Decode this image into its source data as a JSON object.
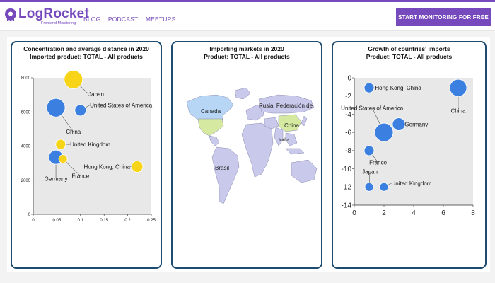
{
  "header": {
    "logo_text": "LogRocket",
    "logo_sub": "Frontend Monitoring",
    "nav": [
      "BLOG",
      "PODCAST",
      "MEETUPS"
    ],
    "cta_label": "START MONITORING FOR FREE",
    "accent": "#764abc"
  },
  "charts": {
    "concentration": {
      "title1": "Concentration and average distance in 2020",
      "title2": "Imported product: TOTAL - All products"
    },
    "map": {
      "title1": "Importing markets in 2020",
      "title2": "Product: TOTAL - All products",
      "labels": [
        "Canada",
        "Rusia, Federación de",
        "China",
        "India",
        "Brasil"
      ]
    },
    "growth": {
      "title1": "Growth of countries' imports",
      "title2": "Product: TOTAL - All products"
    }
  },
  "chart_data": [
    {
      "type": "scatter",
      "title": "Concentration and average distance in 2020",
      "subtitle": "Imported product: TOTAL - All products",
      "xlim": [
        0,
        0.25
      ],
      "ylim": [
        0,
        8000
      ],
      "x_ticks": [
        "0",
        "0.05",
        "0.1",
        "0.15",
        "0.2",
        "0.25"
      ],
      "y_ticks": [
        "0",
        "2000",
        "4000",
        "6000",
        "8000"
      ],
      "points": [
        {
          "name": "Japan",
          "x": 0.085,
          "y": 7900,
          "r": 13,
          "color": "#f7d417",
          "lx": 0.117,
          "ly": 7050,
          "anchor": "start"
        },
        {
          "name": "United States of America",
          "x": 0.1,
          "y": 6100,
          "r": 8,
          "color": "#3b7fe0",
          "lx": 0.12,
          "ly": 6400,
          "anchor": "start"
        },
        {
          "name": "China",
          "x": 0.048,
          "y": 6250,
          "r": 13,
          "color": "#3b7fe0",
          "lx": 0.085,
          "ly": 4850,
          "anchor": "middle"
        },
        {
          "name": "United Kingdom",
          "x": 0.058,
          "y": 4100,
          "r": 7,
          "color": "#f7d417",
          "lx": 0.078,
          "ly": 4100,
          "anchor": "start"
        },
        {
          "name": "Germany",
          "x": 0.048,
          "y": 3350,
          "r": 10,
          "color": "#3b7fe0",
          "lx": 0.048,
          "ly": 2100,
          "anchor": "middle"
        },
        {
          "name": "France",
          "x": 0.063,
          "y": 3250,
          "r": 6,
          "color": "#f7d417",
          "lx": 0.1,
          "ly": 2250,
          "anchor": "middle"
        },
        {
          "name": "Hong Kong, China",
          "x": 0.22,
          "y": 2800,
          "r": 8,
          "color": "#f7d417",
          "lx": 0.205,
          "ly": 2800,
          "anchor": "end"
        }
      ]
    },
    {
      "type": "scatter",
      "title": "Growth of countries' imports",
      "subtitle": "Product: TOTAL - All products",
      "xlim": [
        0,
        8
      ],
      "ylim": [
        -14,
        0
      ],
      "x_ticks": [
        "0",
        "2",
        "4",
        "6",
        "8"
      ],
      "y_ticks": [
        "0",
        "-2",
        "-4",
        "-6",
        "-8",
        "-10",
        "-12",
        "-14"
      ],
      "points": [
        {
          "name": "Hong Kong, China",
          "x": 1,
          "y": -1.1,
          "r": 7,
          "color": "#3b7fe0",
          "lx": 1.4,
          "ly": -1.1,
          "anchor": "start"
        },
        {
          "name": "China",
          "x": 7,
          "y": -1.1,
          "r": 12,
          "color": "#3b7fe0",
          "lx": 7,
          "ly": -3.6,
          "anchor": "middle"
        },
        {
          "name": "United States of America",
          "x": 2,
          "y": -6,
          "r": 13,
          "color": "#3b7fe0",
          "lx": 1.2,
          "ly": -3.3,
          "anchor": "middle"
        },
        {
          "name": "Germany",
          "x": 3,
          "y": -5.1,
          "r": 9,
          "color": "#3b7fe0",
          "lx": 3.4,
          "ly": -5.1,
          "anchor": "start"
        },
        {
          "name": "France",
          "x": 1,
          "y": -8,
          "r": 7,
          "color": "#3b7fe0",
          "lx": 1.6,
          "ly": -9.3,
          "anchor": "middle"
        },
        {
          "name": "Japan",
          "x": 1,
          "y": -12,
          "r": 6,
          "color": "#3b7fe0",
          "lx": 1.05,
          "ly": -10.3,
          "anchor": "middle"
        },
        {
          "name": "United Kingdom",
          "x": 2,
          "y": -12,
          "r": 6,
          "color": "#3b7fe0",
          "lx": 2.5,
          "ly": -11.6,
          "anchor": "start"
        }
      ]
    }
  ]
}
